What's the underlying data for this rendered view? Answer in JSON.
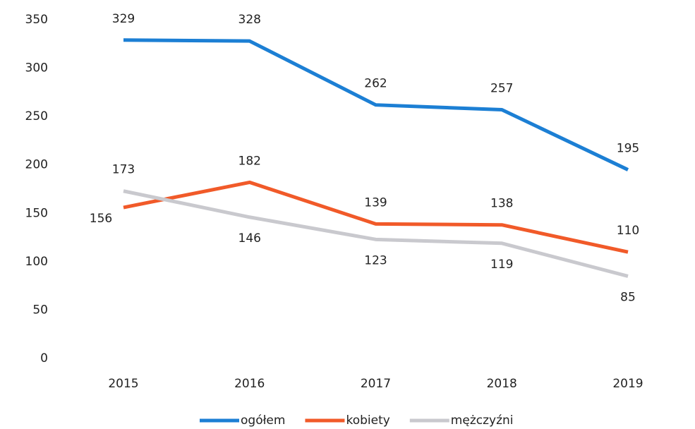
{
  "chart_data": {
    "type": "line",
    "categories": [
      "2015",
      "2016",
      "2017",
      "2018",
      "2019"
    ],
    "series": [
      {
        "name": "ogółem",
        "color": "#1c7fd4",
        "values": [
          329,
          328,
          262,
          257,
          195
        ]
      },
      {
        "name": "kobiety",
        "color": "#f15a29",
        "values": [
          156,
          182,
          139,
          138,
          110
        ]
      },
      {
        "name": "mężczyźni",
        "color": "#c9c9ce",
        "values": [
          173,
          146,
          123,
          119,
          85
        ]
      }
    ],
    "ylim": [
      0,
      350
    ],
    "yticks": [
      0,
      50,
      100,
      150,
      200,
      250,
      300,
      350
    ],
    "grid": false
  }
}
